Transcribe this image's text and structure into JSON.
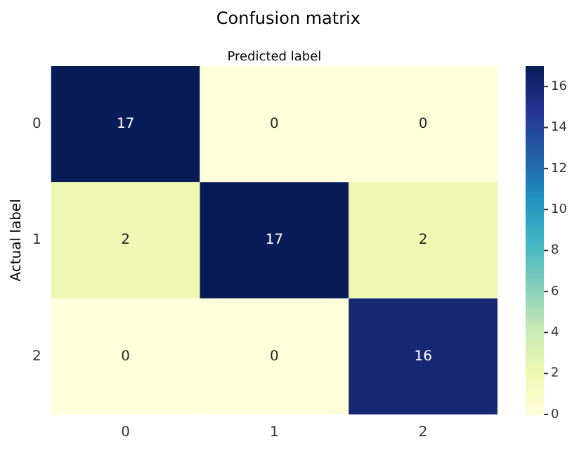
{
  "chart_data": {
    "type": "heatmap",
    "title": "Confusion matrix",
    "xlabel": "Predicted label",
    "ylabel": "Actual label",
    "categories": [
      "0",
      "1",
      "2"
    ],
    "y_categories": [
      "0",
      "1",
      "2"
    ],
    "cells": [
      [
        17,
        0,
        0
      ],
      [
        2,
        17,
        2
      ],
      [
        0,
        0,
        16
      ]
    ],
    "clim": [
      0,
      17
    ],
    "cticks": [
      0,
      2,
      4,
      6,
      8,
      10,
      12,
      14,
      16
    ],
    "data_labels": true
  }
}
